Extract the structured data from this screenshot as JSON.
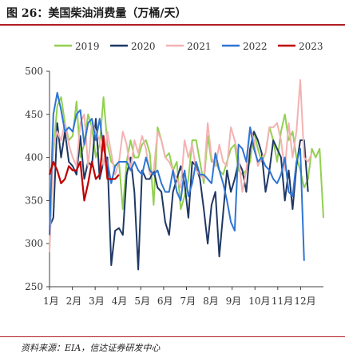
{
  "title": "图 26：美国柴油消费量（万桶/天）",
  "source": "资料来源：EIA，信达证券研发中心",
  "chart_data": {
    "type": "line",
    "ylim": [
      250,
      500
    ],
    "yticks": [
      250,
      300,
      350,
      400,
      450,
      500
    ],
    "month_labels": [
      "1月",
      "2月",
      "3月",
      "4月",
      "5月",
      "6月",
      "7月",
      "8月",
      "9月",
      "10月",
      "11月",
      "12月"
    ],
    "legend_position": "top",
    "grid": false,
    "series": [
      {
        "name": "2019",
        "color": "#92d050",
        "values": [
          295,
          405,
          460,
          470,
          440,
          420,
          425,
          465,
          400,
          415,
          450,
          435,
          400,
          415,
          470,
          415,
          395,
          390,
          395,
          340,
          395,
          420,
          400,
          400,
          415,
          420,
          405,
          345,
          435,
          420,
          400,
          405,
          385,
          395,
          340,
          355,
          375,
          420,
          420,
          395,
          370,
          425,
          395,
          395,
          385,
          380,
          395,
          410,
          415,
          385,
          380,
          385,
          395,
          430,
          410,
          395,
          405,
          435,
          420,
          395,
          430,
          450,
          420,
          430,
          400,
          385,
          365,
          375,
          410,
          400,
          410,
          330
        ]
      },
      {
        "name": "2020",
        "color": "#1f3864",
        "values": [
          320,
          330,
          440,
          400,
          430,
          395,
          390,
          380,
          425,
          375,
          395,
          390,
          445,
          375,
          395,
          400,
          275,
          315,
          318,
          310,
          380,
          400,
          360,
          270,
          385,
          375,
          375,
          385,
          365,
          360,
          325,
          310,
          360,
          375,
          390,
          370,
          330,
          395,
          390,
          375,
          340,
          300,
          345,
          360,
          285,
          335,
          385,
          360,
          375,
          395,
          385,
          360,
          410,
          430,
          420,
          405,
          360,
          385,
          420,
          410,
          400,
          350,
          385,
          340,
          390,
          420,
          420,
          360
        ]
      },
      {
        "name": "2021",
        "color": "#f4b2b2",
        "values": [
          290,
          415,
          430,
          420,
          440,
          415,
          400,
          390,
          440,
          450,
          390,
          440,
          430,
          420,
          390,
          430,
          405,
          380,
          395,
          430,
          415,
          385,
          420,
          405,
          425,
          410,
          380,
          385,
          430,
          420,
          400,
          395,
          385,
          375,
          365,
          420,
          400,
          415,
          385,
          380,
          375,
          440,
          400,
          390,
          415,
          395,
          390,
          435,
          420,
          400,
          360,
          385,
          435,
          420,
          390,
          400,
          405,
          435,
          435,
          440,
          420,
          385,
          440,
          400,
          430,
          490,
          400,
          395,
          405
        ]
      },
      {
        "name": "2022",
        "color": "#2e75d4",
        "values": [
          310,
          450,
          475,
          455,
          430,
          435,
          430,
          450,
          455,
          415,
          440,
          445,
          420,
          445,
          410,
          395,
          370,
          390,
          395,
          395,
          395,
          385,
          395,
          385,
          380,
          400,
          385,
          380,
          385,
          370,
          360,
          360,
          385,
          360,
          350,
          385,
          355,
          370,
          395,
          380,
          380,
          375,
          370,
          405,
          385,
          370,
          350,
          325,
          315,
          415,
          410,
          395,
          435,
          410,
          395,
          400,
          390,
          385,
          375,
          370,
          380,
          400,
          360,
          355,
          395,
          410,
          280
        ]
      },
      {
        "name": "2023",
        "color": "#c00000",
        "values": [
          380,
          395,
          385,
          370,
          375,
          390,
          385,
          385,
          395,
          350,
          370,
          395,
          375,
          380,
          425,
          375,
          375,
          375,
          380
        ]
      }
    ]
  }
}
